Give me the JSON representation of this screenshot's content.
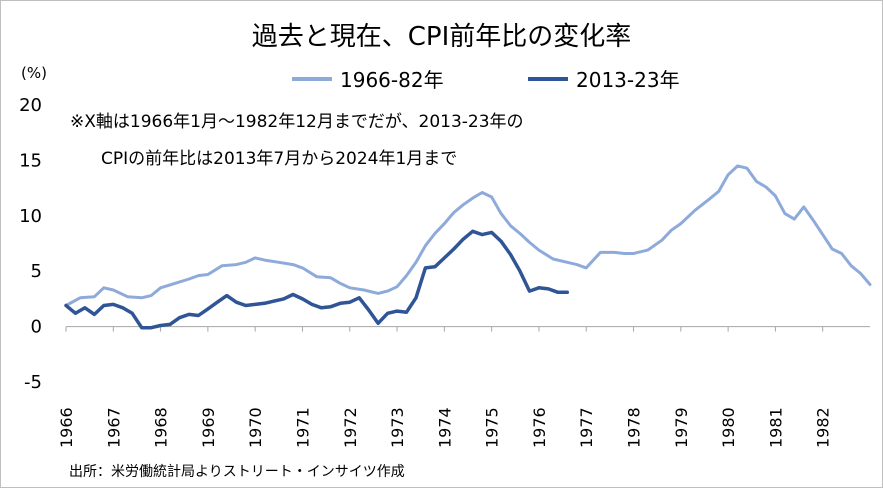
{
  "chart_data": {
    "type": "line",
    "title": "過去と現在、CPI前年比の変化率",
    "unit": "(%)",
    "notes": [
      "※X軸は1966年1月〜1982年12月までだが、2013-23年の",
      "CPIの前年比は2013年7月から2024年1月まで"
    ],
    "source": "出所：米労働統計局よりストリート・インサイツ作成",
    "legend_position": "top-center",
    "grid": false,
    "ylim": [
      -5,
      20
    ],
    "yticks": [
      "-5",
      "0",
      "5",
      "10",
      "15",
      "20"
    ],
    "yvalues": [
      -5,
      0,
      5,
      10,
      15,
      20
    ],
    "xlim": [
      1966,
      1983
    ],
    "xticks": [
      "1966",
      "1967",
      "1968",
      "1969",
      "1970",
      "1971",
      "1972",
      "1973",
      "1974",
      "1975",
      "1976",
      "1977",
      "1978",
      "1979",
      "1980",
      "1981",
      "1982"
    ],
    "series": [
      {
        "name": "1966-82年",
        "color": "#8eaadb",
        "x": [
          1966.0,
          1966.3,
          1966.6,
          1966.8,
          1967.0,
          1967.3,
          1967.6,
          1967.8,
          1968.0,
          1968.3,
          1968.6,
          1968.8,
          1969.0,
          1969.3,
          1969.6,
          1969.8,
          1970.0,
          1970.2,
          1970.5,
          1970.8,
          1971.0,
          1971.3,
          1971.6,
          1971.8,
          1972.0,
          1972.3,
          1972.6,
          1972.8,
          1973.0,
          1973.2,
          1973.4,
          1973.6,
          1973.8,
          1974.0,
          1974.2,
          1974.4,
          1974.6,
          1974.8,
          1975.0,
          1975.2,
          1975.4,
          1975.6,
          1975.8,
          1976.0,
          1976.3,
          1976.6,
          1976.8,
          1977.0,
          1977.3,
          1977.6,
          1977.8,
          1978.0,
          1978.3,
          1978.6,
          1978.8,
          1979.0,
          1979.3,
          1979.6,
          1979.8,
          1980.0,
          1980.2,
          1980.4,
          1980.6,
          1980.8,
          1981.0,
          1981.2,
          1981.4,
          1981.6,
          1981.8,
          1982.0,
          1982.2,
          1982.4,
          1982.6,
          1982.8,
          1983.0
        ],
        "y": [
          1.9,
          2.6,
          2.7,
          3.5,
          3.3,
          2.7,
          2.6,
          2.8,
          3.5,
          3.9,
          4.3,
          4.6,
          4.7,
          5.5,
          5.6,
          5.8,
          6.2,
          6.0,
          5.8,
          5.6,
          5.3,
          4.5,
          4.4,
          3.9,
          3.5,
          3.3,
          3.0,
          3.2,
          3.6,
          4.6,
          5.8,
          7.3,
          8.4,
          9.3,
          10.3,
          11.0,
          11.6,
          12.1,
          11.7,
          10.2,
          9.1,
          8.4,
          7.6,
          6.9,
          6.1,
          5.8,
          5.6,
          5.3,
          6.7,
          6.7,
          6.6,
          6.6,
          6.9,
          7.8,
          8.7,
          9.3,
          10.5,
          11.5,
          12.2,
          13.7,
          14.5,
          14.3,
          13.1,
          12.6,
          11.8,
          10.2,
          9.7,
          10.8,
          9.6,
          8.3,
          7.0,
          6.6,
          5.5,
          4.8,
          3.8
        ]
      },
      {
        "name": "2013-23年",
        "color": "#2f5597",
        "x": [
          1966.0,
          1966.2,
          1966.4,
          1966.6,
          1966.8,
          1967.0,
          1967.2,
          1967.4,
          1967.6,
          1967.8,
          1968.0,
          1968.2,
          1968.4,
          1968.6,
          1968.8,
          1969.0,
          1969.2,
          1969.4,
          1969.6,
          1969.8,
          1970.0,
          1970.2,
          1970.4,
          1970.6,
          1970.8,
          1971.0,
          1971.2,
          1971.4,
          1971.6,
          1971.8,
          1972.0,
          1972.2,
          1972.4,
          1972.6,
          1972.8,
          1973.0,
          1973.2,
          1973.4,
          1973.6,
          1973.8,
          1974.0,
          1974.2,
          1974.4,
          1974.6,
          1974.8,
          1975.0,
          1975.2,
          1975.4,
          1975.6,
          1975.8,
          1976.0,
          1976.2,
          1976.4,
          1976.6
        ],
        "y": [
          1.9,
          1.2,
          1.7,
          1.1,
          1.9,
          2.0,
          1.7,
          1.2,
          -0.1,
          -0.1,
          0.1,
          0.2,
          0.8,
          1.1,
          1.0,
          1.6,
          2.2,
          2.8,
          2.2,
          1.9,
          2.0,
          2.1,
          2.3,
          2.5,
          2.9,
          2.5,
          2.0,
          1.7,
          1.8,
          2.1,
          2.2,
          2.6,
          1.5,
          0.3,
          1.2,
          1.4,
          1.3,
          2.6,
          5.3,
          5.4,
          6.2,
          7.0,
          7.9,
          8.6,
          8.3,
          8.5,
          7.7,
          6.5,
          5.0,
          3.2,
          3.5,
          3.4,
          3.1,
          3.1
        ]
      }
    ]
  }
}
